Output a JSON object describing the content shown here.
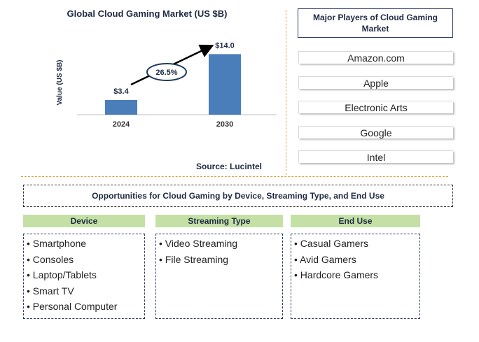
{
  "chart_data": {
    "type": "bar",
    "title": "Global Cloud Gaming Market (US $B)",
    "ylabel": "Value (US $B)",
    "categories": [
      "2024",
      "2030"
    ],
    "values": [
      3.4,
      14.0
    ],
    "value_labels": [
      "$3.4",
      "$14.0"
    ],
    "ylim": [
      0,
      16
    ],
    "cagr_label": "26.5%",
    "bar_color": "#4a7ebb",
    "grid": false
  },
  "source": "Source: Lucintel",
  "players": {
    "header": "Major Players of Cloud Gaming Market",
    "items": [
      "Amazon.com",
      "Apple",
      "Electronic Arts",
      "Google",
      "Intel"
    ]
  },
  "opportunities": {
    "title": "Opportunities for Cloud Gaming by Device, Streaming Type, and End Use",
    "header_color": "#c5e0a5",
    "categories": [
      {
        "name": "Device",
        "items": [
          "Smartphone",
          "Consoles",
          "Laptop/Tablets",
          "Smart TV",
          "Personal Computer"
        ]
      },
      {
        "name": "Streaming Type",
        "items": [
          "Video Streaming",
          "File Streaming"
        ]
      },
      {
        "name": "End Use",
        "items": [
          "Casual Gamers",
          "Avid Gamers",
          "Hardcore Gamers"
        ]
      }
    ]
  }
}
